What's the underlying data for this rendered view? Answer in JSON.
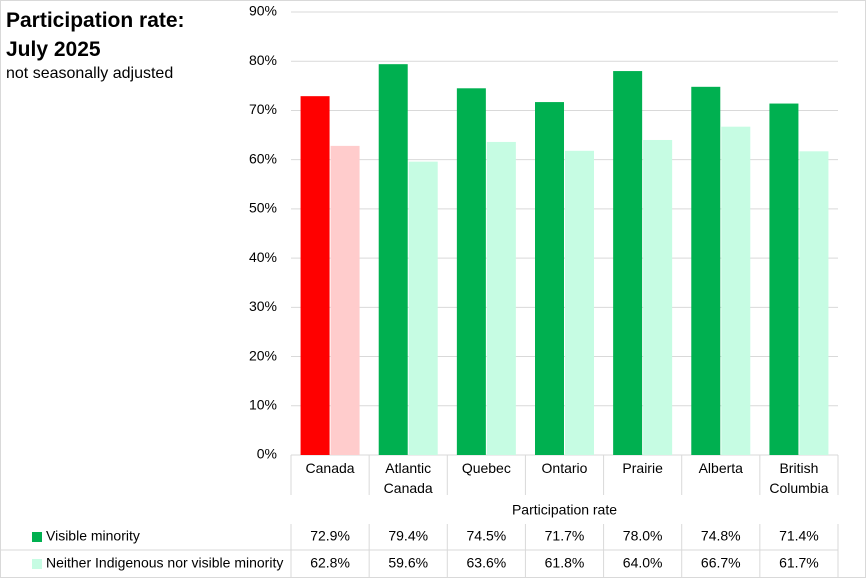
{
  "chart_data": {
    "type": "bar",
    "title": "Participation rate: July 2025",
    "subtitle": "not seasonally adjusted",
    "x_label": "Participation rate",
    "categories": [
      "Canada",
      "Atlantic Canada",
      "Quebec",
      "Ontario",
      "Prairie",
      "Alberta",
      "British Columbia"
    ],
    "series": [
      {
        "name": "Visible minority",
        "color": "#00b050",
        "highlight_color": "#ff0000",
        "values": [
          72.9,
          79.4,
          74.5,
          71.7,
          78.0,
          74.8,
          71.4
        ],
        "value_labels": [
          "72.9%",
          "79.4%",
          "74.5%",
          "71.7%",
          "78.0%",
          "74.8%",
          "71.4%"
        ]
      },
      {
        "name": "Neither Indigenous nor visible minority",
        "color": "#c6fce3",
        "highlight_color": "#ffcccc",
        "values": [
          62.8,
          59.6,
          63.6,
          61.8,
          64.0,
          66.7,
          61.7
        ],
        "value_labels": [
          "62.8%",
          "59.6%",
          "63.6%",
          "61.8%",
          "64.0%",
          "66.7%",
          "61.7%"
        ]
      }
    ],
    "highlight_category": "Canada",
    "ylim": [
      0,
      90
    ],
    "yticks": [
      {
        "value": 0,
        "label": "0%"
      },
      {
        "value": 10,
        "label": "10%"
      },
      {
        "value": 20,
        "label": "20%"
      },
      {
        "value": 30,
        "label": "30%"
      },
      {
        "value": 40,
        "label": "40%"
      },
      {
        "value": 50,
        "label": "50%"
      },
      {
        "value": 60,
        "label": "60%"
      },
      {
        "value": 70,
        "label": "70%"
      },
      {
        "value": 80,
        "label": "80%"
      },
      {
        "value": 90,
        "label": "90%"
      }
    ],
    "grid": true
  }
}
